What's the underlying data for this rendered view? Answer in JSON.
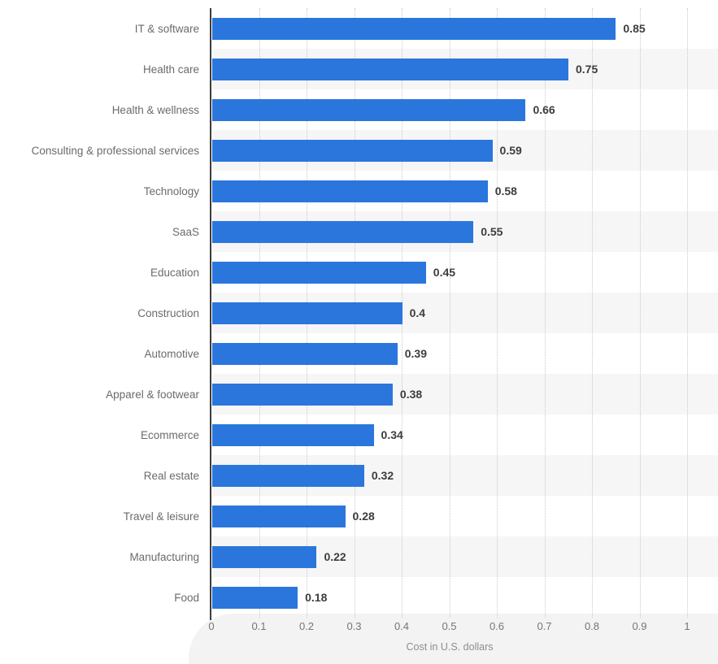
{
  "chart_data": {
    "type": "bar",
    "orientation": "horizontal",
    "title": "",
    "xlabel": "Cost in U.S. dollars",
    "ylabel": "",
    "xlim": [
      0,
      1
    ],
    "grid": "vertical-dotted",
    "legend": "none",
    "zebra_striping": true,
    "categories": [
      "IT & software",
      "Health care",
      "Health & wellness",
      "Consulting & professional services",
      "Technology",
      "SaaS",
      "Education",
      "Construction",
      "Automotive",
      "Apparel & footwear",
      "Ecommerce",
      "Real estate",
      "Travel & leisure",
      "Manufacturing",
      "Food"
    ],
    "values": [
      0.85,
      0.75,
      0.66,
      0.59,
      0.58,
      0.55,
      0.45,
      0.4,
      0.39,
      0.38,
      0.34,
      0.32,
      0.28,
      0.22,
      0.18
    ],
    "value_labels": [
      "0.85",
      "0.75",
      "0.66",
      "0.59",
      "0.58",
      "0.55",
      "0.45",
      "0.4",
      "0.39",
      "0.38",
      "0.34",
      "0.32",
      "0.28",
      "0.22",
      "0.18"
    ],
    "x_ticks": [
      0,
      0.1,
      0.2,
      0.3,
      0.4,
      0.5,
      0.6,
      0.7,
      0.8,
      0.9,
      1
    ],
    "x_tick_labels": [
      "0",
      "0.1",
      "0.2",
      "0.3",
      "0.4",
      "0.5",
      "0.6",
      "0.7",
      "0.8",
      "0.9",
      "1"
    ],
    "colors": {
      "bar": "#2b76dd",
      "stripe": "#f6f6f6",
      "footer": "#f3f3f3",
      "axis_line": "#3c3c3c",
      "gridline": "#c9c9c9",
      "category_label": "#6b6b6b",
      "value_label": "#3d3d3d",
      "tick_label": "#757575",
      "axis_title": "#8d8d8d"
    }
  }
}
